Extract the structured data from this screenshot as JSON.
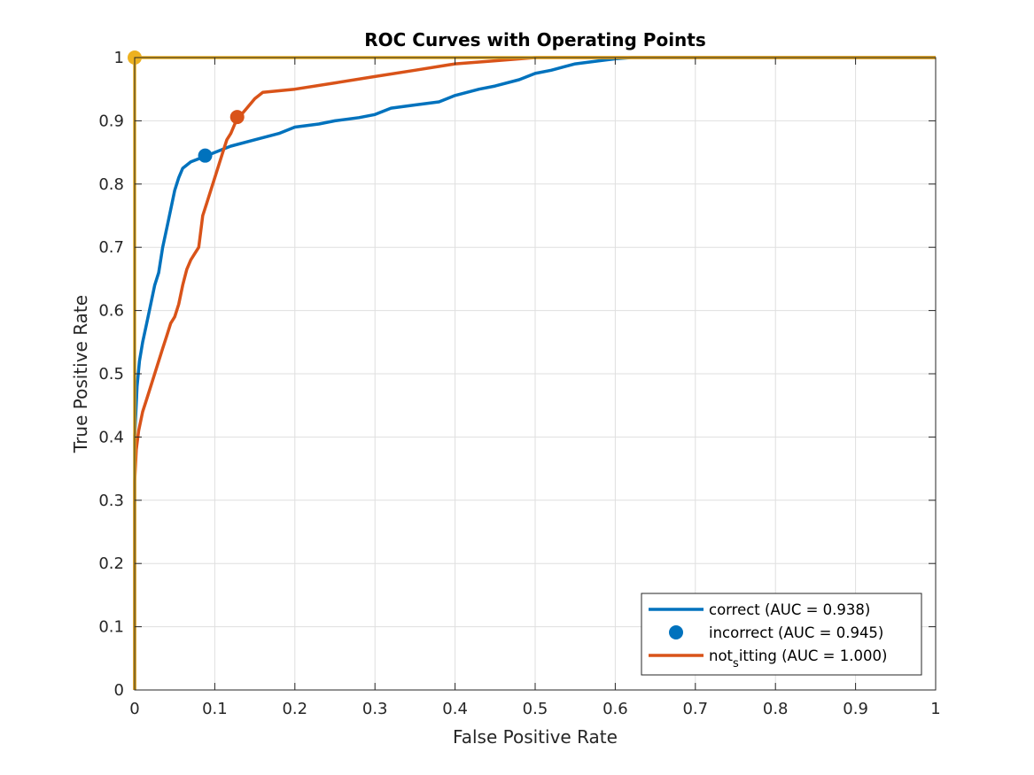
{
  "chart_data": {
    "type": "line",
    "title": "ROC Curves with Operating Points",
    "xlabel": "False Positive Rate",
    "ylabel": "True Positive Rate",
    "xlim": [
      0,
      1
    ],
    "ylim": [
      0,
      1
    ],
    "xticks": [
      "0",
      "0.1",
      "0.2",
      "0.3",
      "0.4",
      "0.5",
      "0.6",
      "0.7",
      "0.8",
      "0.9",
      "1"
    ],
    "yticks": [
      "0",
      "0.1",
      "0.2",
      "0.3",
      "0.4",
      "0.5",
      "0.6",
      "0.7",
      "0.8",
      "0.9",
      "1"
    ],
    "grid": true,
    "legend_position": "bottom-right",
    "colors": {
      "series1": "#0072BD",
      "series2": "#D95319",
      "series3": "#EDB120",
      "axis": "#262626"
    },
    "legend": [
      {
        "marker": "line",
        "color": "#0072BD",
        "pre": "correct (AUC = 0.938)",
        "sub": "",
        "post": ""
      },
      {
        "marker": "dot",
        "color": "#0072BD",
        "pre": "incorrect (AUC = 0.945)",
        "sub": "",
        "post": ""
      },
      {
        "marker": "line",
        "color": "#D95319",
        "pre": "not",
        "sub": "s",
        "post": "itting (AUC = 1.000)"
      }
    ],
    "series": [
      {
        "color": "#0072BD",
        "x": [
          0,
          0,
          0.003,
          0.006,
          0.01,
          0.015,
          0.02,
          0.025,
          0.03,
          0.035,
          0.04,
          0.045,
          0.05,
          0.055,
          0.06,
          0.07,
          0.08,
          0.09,
          0.1,
          0.12,
          0.15,
          0.18,
          0.2,
          0.23,
          0.25,
          0.28,
          0.3,
          0.32,
          0.35,
          0.38,
          0.4,
          0.43,
          0.45,
          0.48,
          0.5,
          0.52,
          0.55,
          0.58,
          0.6,
          0.62,
          0.65,
          0.7,
          0.8,
          0.9,
          1
        ],
        "y": [
          0,
          0.4,
          0.48,
          0.52,
          0.55,
          0.58,
          0.61,
          0.64,
          0.66,
          0.7,
          0.73,
          0.76,
          0.79,
          0.81,
          0.825,
          0.835,
          0.84,
          0.845,
          0.85,
          0.86,
          0.87,
          0.88,
          0.89,
          0.895,
          0.9,
          0.905,
          0.91,
          0.92,
          0.925,
          0.93,
          0.94,
          0.95,
          0.955,
          0.965,
          0.975,
          0.98,
          0.99,
          0.995,
          0.998,
          1,
          1,
          1,
          1,
          1,
          1
        ]
      },
      {
        "color": "#D95319",
        "x": [
          0,
          0,
          0.002,
          0.005,
          0.01,
          0.015,
          0.02,
          0.025,
          0.03,
          0.035,
          0.04,
          0.045,
          0.05,
          0.055,
          0.06,
          0.062,
          0.065,
          0.07,
          0.075,
          0.08,
          0.085,
          0.09,
          0.095,
          0.1,
          0.105,
          0.11,
          0.115,
          0.12,
          0.125,
          0.13,
          0.14,
          0.15,
          0.16,
          0.2,
          0.25,
          0.3,
          0.35,
          0.4,
          0.45,
          0.5,
          0.55,
          0.6,
          0.7,
          0.8,
          0.9,
          1
        ],
        "y": [
          0,
          0.33,
          0.38,
          0.41,
          0.44,
          0.46,
          0.48,
          0.5,
          0.52,
          0.54,
          0.56,
          0.58,
          0.59,
          0.61,
          0.64,
          0.65,
          0.665,
          0.68,
          0.69,
          0.7,
          0.75,
          0.77,
          0.79,
          0.81,
          0.83,
          0.85,
          0.87,
          0.88,
          0.895,
          0.905,
          0.92,
          0.935,
          0.945,
          0.95,
          0.96,
          0.97,
          0.98,
          0.99,
          0.995,
          1,
          1,
          1,
          1,
          1,
          1,
          1
        ]
      },
      {
        "color": "#EDB120",
        "x": [
          0,
          0,
          1
        ],
        "y": [
          0,
          1,
          1
        ]
      }
    ],
    "points": [
      {
        "color": "#0072BD",
        "x": 0.088,
        "y": 0.845
      },
      {
        "color": "#D95319",
        "x": 0.128,
        "y": 0.906
      },
      {
        "color": "#EDB120",
        "x": 0.0,
        "y": 1.0
      }
    ]
  }
}
